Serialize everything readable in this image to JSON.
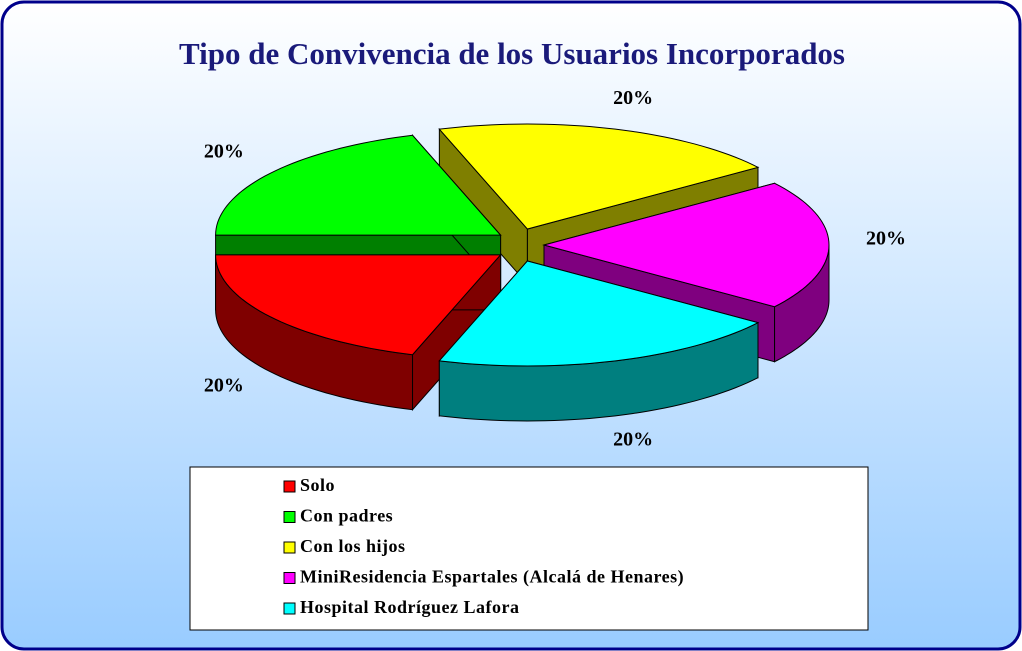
{
  "chart_data": {
    "type": "pie3d",
    "title": "Tipo de Convivencia de los Usuarios Incorporados",
    "categories": [
      "Solo",
      "Con padres",
      "Con los hijos",
      "MiniResidencia Espartales (Alcalá de Henares)",
      "Hospital Rodríguez Lafora"
    ],
    "values": [
      20,
      20,
      20,
      20,
      20
    ],
    "value_labels": [
      "20%",
      "20%",
      "20%",
      "20%",
      "20%"
    ],
    "colors": [
      "#ff0000",
      "#00ff00",
      "#ffff00",
      "#ff00ff",
      "#00ffff"
    ],
    "legend": "bottom"
  }
}
